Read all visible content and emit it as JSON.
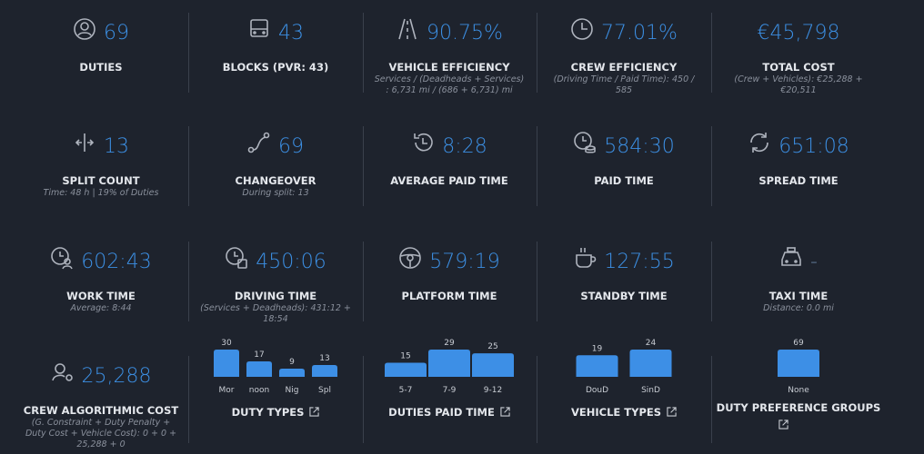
{
  "tiles": [
    {
      "value": "69",
      "label": "DUTIES"
    },
    {
      "value": "43",
      "label": "BLOCKS (PVR: 43)"
    },
    {
      "value": "90.75%",
      "label": "VEHICLE EFFICIENCY",
      "note": "Services / (Deadheads + Services) : 6,731 mi / (686 + 6,731) mi"
    },
    {
      "value": "77.01%",
      "label": "CREW EFFICIENCY",
      "note": "(Driving Time / Paid Time): 450 / 585"
    },
    {
      "value": "€45,798",
      "label": "TOTAL COST",
      "note": "(Crew + Vehicles): €25,288 + €20,511"
    },
    {
      "value": "13",
      "label": "SPLIT COUNT",
      "note": "Time: 48 h | 19% of Duties"
    },
    {
      "value": "69",
      "label": "CHANGEOVER",
      "note": "During split: 13"
    },
    {
      "value": "8:28",
      "label": "AVERAGE PAID TIME"
    },
    {
      "value": "584:30",
      "label": "PAID TIME"
    },
    {
      "value": "651:08",
      "label": "SPREAD TIME"
    },
    {
      "value": "602:43",
      "label": "WORK TIME",
      "note": "Average: 8:44"
    },
    {
      "value": "450:06",
      "label": "DRIVING TIME",
      "note": "(Services + Deadheads): 431:12 + 18:54"
    },
    {
      "value": "579:19",
      "label": "PLATFORM TIME"
    },
    {
      "value": "127:55",
      "label": "STANDBY TIME"
    },
    {
      "value": "-",
      "label": "TAXI TIME",
      "note": "Distance: 0.0 mi"
    },
    {
      "value": "25,288",
      "label": "CREW ALGORITHMIC COST",
      "note": "(G. Constraint + Duty Penalty + Duty Cost + Vehicle Cost): 0 + 0 + 25,288 + 0"
    }
  ],
  "charts": [
    {
      "title": "DUTY TYPES",
      "categories": [
        "Mor",
        "noon",
        "Nig",
        "Spl"
      ],
      "values": [
        30,
        17,
        9,
        13
      ]
    },
    {
      "title": "DUTIES PAID TIME",
      "categories": [
        "5-7",
        "7-9",
        "9-12"
      ],
      "values": [
        15,
        29,
        25
      ]
    },
    {
      "title": "VEHICLE TYPES",
      "categories": [
        "DouD",
        "SinD"
      ],
      "values": [
        19,
        24
      ]
    },
    {
      "title": "DUTY PREFERENCE GROUPS",
      "categories": [
        "None"
      ],
      "values": [
        69
      ]
    }
  ]
}
